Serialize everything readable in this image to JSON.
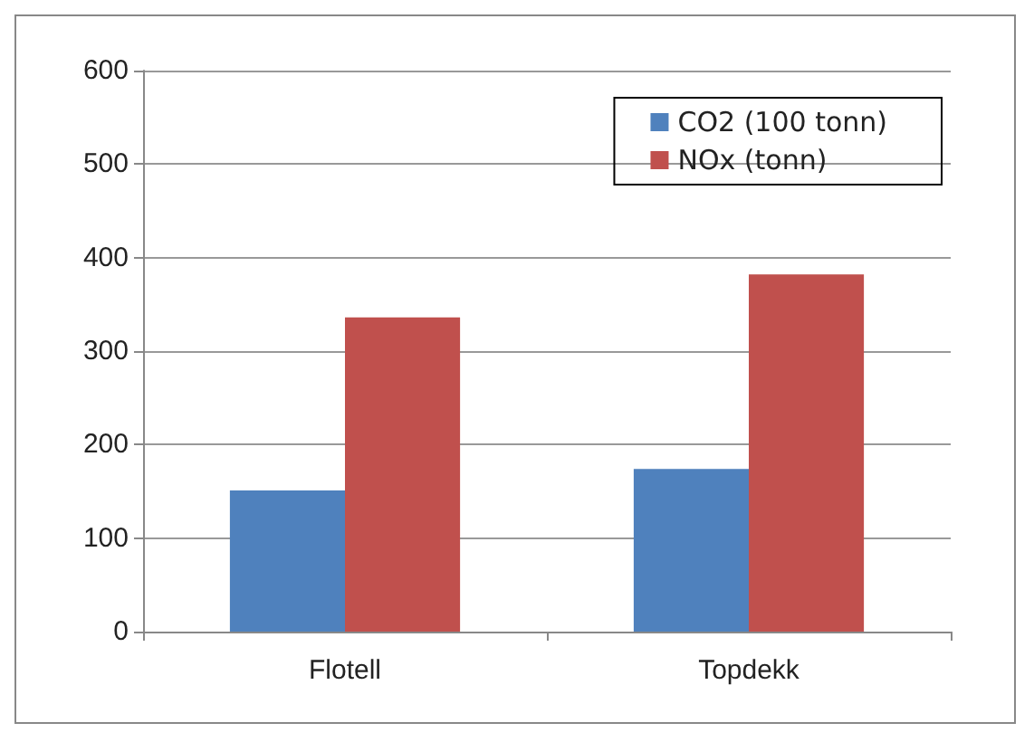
{
  "chart_data": {
    "type": "bar",
    "categories": [
      "Flotell",
      "Topdekk"
    ],
    "series": [
      {
        "name": "CO2 (100 tonn)",
        "color": "#4f81bd",
        "values": [
          151,
          174
        ]
      },
      {
        "name": "NOx (tonn)",
        "color": "#c0504d",
        "values": [
          336,
          382
        ]
      }
    ],
    "ylim": [
      0,
      600
    ],
    "yticks": [
      0,
      100,
      200,
      300,
      400,
      500,
      600
    ],
    "grid": "y",
    "legend": "top right"
  }
}
